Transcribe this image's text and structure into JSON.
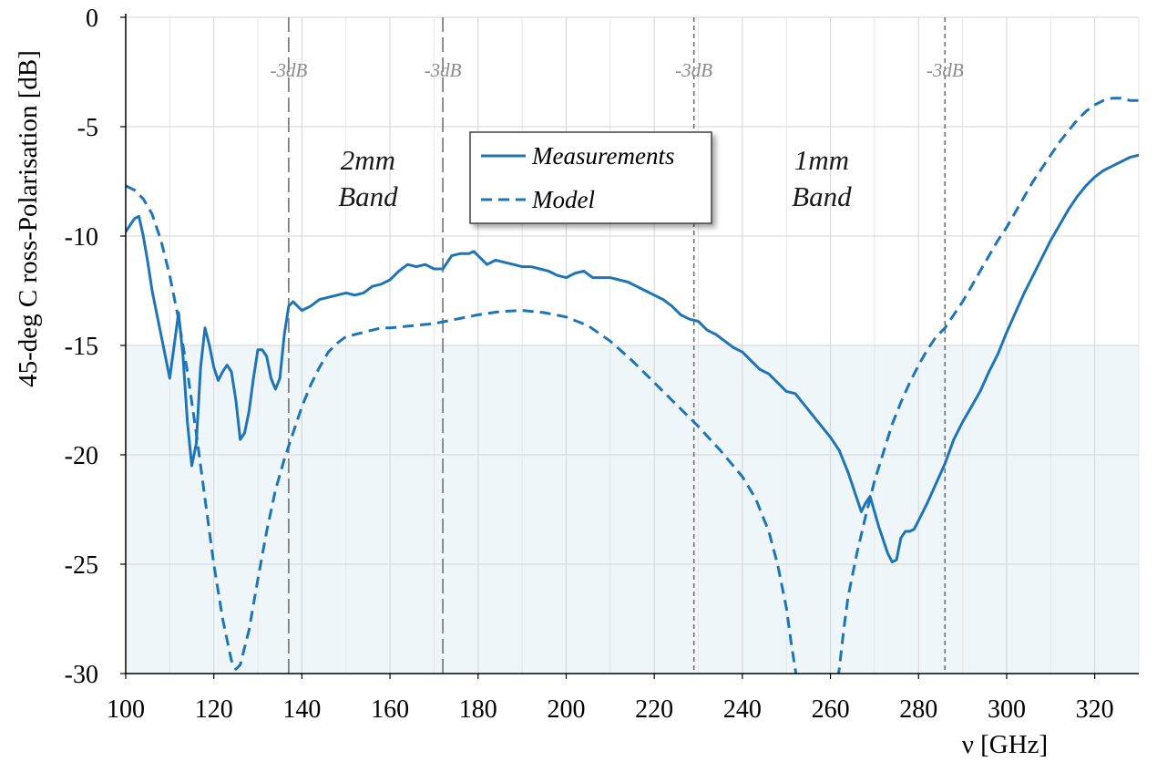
{
  "chart_data": {
    "type": "line",
    "xlabel": "ν [GHz]",
    "ylabel": "45-deg C ross-Polarisation [dB]",
    "xlim": [
      100,
      330
    ],
    "ylim": [
      -30,
      0
    ],
    "x_ticks": [
      100,
      120,
      140,
      160,
      180,
      200,
      220,
      240,
      260,
      280,
      300,
      320
    ],
    "y_ticks": [
      0,
      -5,
      -10,
      -15,
      -20,
      -25,
      -30
    ],
    "grid": true,
    "shaded_region": {
      "y_from": -30,
      "y_to": -15,
      "color": "#eef6fa"
    },
    "legend_position": "top-center",
    "line_color": "#1f74b7",
    "marker_lines": [
      {
        "x": 137,
        "label": "-3dB",
        "style": "long-dash"
      },
      {
        "x": 172,
        "label": "-3dB",
        "style": "long-dash"
      },
      {
        "x": 229,
        "label": "-3dB",
        "style": "short-dash"
      },
      {
        "x": 286,
        "label": "-3dB",
        "style": "short-dash"
      }
    ],
    "band_labels": [
      {
        "lines": [
          "2mm",
          "Band"
        ],
        "x": 155
      },
      {
        "lines": [
          "1mm",
          "Band"
        ],
        "x": 258
      }
    ],
    "series": [
      {
        "name": "Measurements",
        "style": "solid",
        "points": [
          [
            100,
            -9.8
          ],
          [
            101,
            -9.5
          ],
          [
            102,
            -9.2
          ],
          [
            103,
            -9.1
          ],
          [
            104,
            -10.0
          ],
          [
            105,
            -11.2
          ],
          [
            106,
            -12.5
          ],
          [
            107,
            -13.5
          ],
          [
            108,
            -14.5
          ],
          [
            109,
            -15.5
          ],
          [
            110,
            -16.5
          ],
          [
            111,
            -15.0
          ],
          [
            112,
            -13.5
          ],
          [
            113,
            -15.5
          ],
          [
            114,
            -18.5
          ],
          [
            115,
            -20.5
          ],
          [
            116,
            -19.5
          ],
          [
            117,
            -16.0
          ],
          [
            118,
            -14.2
          ],
          [
            119,
            -15.0
          ],
          [
            120,
            -16.0
          ],
          [
            121,
            -16.6
          ],
          [
            122,
            -16.2
          ],
          [
            123,
            -15.9
          ],
          [
            124,
            -16.2
          ],
          [
            125,
            -17.5
          ],
          [
            126,
            -19.3
          ],
          [
            127,
            -19.0
          ],
          [
            128,
            -18.0
          ],
          [
            129,
            -16.5
          ],
          [
            130,
            -15.2
          ],
          [
            131,
            -15.2
          ],
          [
            132,
            -15.5
          ],
          [
            133,
            -16.5
          ],
          [
            134,
            -17.0
          ],
          [
            135,
            -16.5
          ],
          [
            136,
            -14.5
          ],
          [
            137,
            -13.2
          ],
          [
            138,
            -13.0
          ],
          [
            140,
            -13.4
          ],
          [
            142,
            -13.2
          ],
          [
            144,
            -12.9
          ],
          [
            146,
            -12.8
          ],
          [
            148,
            -12.7
          ],
          [
            150,
            -12.6
          ],
          [
            152,
            -12.7
          ],
          [
            154,
            -12.6
          ],
          [
            156,
            -12.3
          ],
          [
            158,
            -12.2
          ],
          [
            160,
            -12.0
          ],
          [
            162,
            -11.6
          ],
          [
            164,
            -11.3
          ],
          [
            166,
            -11.4
          ],
          [
            168,
            -11.3
          ],
          [
            170,
            -11.5
          ],
          [
            172,
            -11.5
          ],
          [
            174,
            -10.9
          ],
          [
            176,
            -10.8
          ],
          [
            178,
            -10.8
          ],
          [
            179,
            -10.7
          ],
          [
            180,
            -10.9
          ],
          [
            182,
            -11.3
          ],
          [
            184,
            -11.1
          ],
          [
            186,
            -11.2
          ],
          [
            188,
            -11.3
          ],
          [
            190,
            -11.4
          ],
          [
            192,
            -11.4
          ],
          [
            194,
            -11.5
          ],
          [
            196,
            -11.6
          ],
          [
            198,
            -11.8
          ],
          [
            200,
            -11.9
          ],
          [
            202,
            -11.7
          ],
          [
            204,
            -11.6
          ],
          [
            206,
            -11.9
          ],
          [
            208,
            -11.9
          ],
          [
            210,
            -11.9
          ],
          [
            212,
            -12.0
          ],
          [
            214,
            -12.1
          ],
          [
            216,
            -12.3
          ],
          [
            218,
            -12.5
          ],
          [
            220,
            -12.7
          ],
          [
            222,
            -12.9
          ],
          [
            224,
            -13.2
          ],
          [
            226,
            -13.6
          ],
          [
            228,
            -13.8
          ],
          [
            230,
            -13.9
          ],
          [
            232,
            -14.3
          ],
          [
            234,
            -14.5
          ],
          [
            236,
            -14.8
          ],
          [
            238,
            -15.1
          ],
          [
            240,
            -15.3
          ],
          [
            242,
            -15.7
          ],
          [
            244,
            -16.1
          ],
          [
            246,
            -16.3
          ],
          [
            248,
            -16.7
          ],
          [
            250,
            -17.1
          ],
          [
            252,
            -17.2
          ],
          [
            254,
            -17.7
          ],
          [
            256,
            -18.2
          ],
          [
            258,
            -18.7
          ],
          [
            260,
            -19.2
          ],
          [
            262,
            -19.8
          ],
          [
            264,
            -20.8
          ],
          [
            266,
            -22.0
          ],
          [
            267,
            -22.6
          ],
          [
            268,
            -22.2
          ],
          [
            269,
            -21.9
          ],
          [
            270,
            -22.6
          ],
          [
            271,
            -23.3
          ],
          [
            272,
            -23.9
          ],
          [
            273,
            -24.5
          ],
          [
            274,
            -24.9
          ],
          [
            275,
            -24.8
          ],
          [
            276,
            -23.8
          ],
          [
            277,
            -23.5
          ],
          [
            278,
            -23.5
          ],
          [
            279,
            -23.4
          ],
          [
            280,
            -23.0
          ],
          [
            282,
            -22.2
          ],
          [
            284,
            -21.3
          ],
          [
            286,
            -20.4
          ],
          [
            288,
            -19.3
          ],
          [
            290,
            -18.5
          ],
          [
            292,
            -17.8
          ],
          [
            294,
            -17.1
          ],
          [
            296,
            -16.2
          ],
          [
            298,
            -15.4
          ],
          [
            300,
            -14.4
          ],
          [
            302,
            -13.5
          ],
          [
            304,
            -12.6
          ],
          [
            306,
            -11.8
          ],
          [
            308,
            -11.0
          ],
          [
            310,
            -10.2
          ],
          [
            312,
            -9.5
          ],
          [
            314,
            -8.8
          ],
          [
            316,
            -8.2
          ],
          [
            318,
            -7.7
          ],
          [
            320,
            -7.3
          ],
          [
            322,
            -7.0
          ],
          [
            324,
            -6.8
          ],
          [
            326,
            -6.6
          ],
          [
            328,
            -6.4
          ],
          [
            330,
            -6.3
          ]
        ]
      },
      {
        "name": "Model",
        "style": "dashed",
        "points": [
          [
            100,
            -7.7
          ],
          [
            102,
            -7.9
          ],
          [
            104,
            -8.3
          ],
          [
            106,
            -9.0
          ],
          [
            108,
            -10.2
          ],
          [
            110,
            -11.8
          ],
          [
            112,
            -13.8
          ],
          [
            114,
            -16.2
          ],
          [
            116,
            -19.0
          ],
          [
            118,
            -22.0
          ],
          [
            120,
            -25.0
          ],
          [
            122,
            -27.5
          ],
          [
            124,
            -29.4
          ],
          [
            125,
            -29.8
          ],
          [
            126,
            -29.6
          ],
          [
            128,
            -28.0
          ],
          [
            130,
            -25.7
          ],
          [
            132,
            -23.5
          ],
          [
            134,
            -21.6
          ],
          [
            136,
            -20.2
          ],
          [
            138,
            -19.0
          ],
          [
            140,
            -17.8
          ],
          [
            142,
            -16.8
          ],
          [
            144,
            -16.0
          ],
          [
            146,
            -15.3
          ],
          [
            148,
            -14.9
          ],
          [
            150,
            -14.6
          ],
          [
            152,
            -14.5
          ],
          [
            154,
            -14.4
          ],
          [
            156,
            -14.3
          ],
          [
            158,
            -14.2
          ],
          [
            160,
            -14.2
          ],
          [
            165,
            -14.1
          ],
          [
            170,
            -14.0
          ],
          [
            175,
            -13.8
          ],
          [
            180,
            -13.6
          ],
          [
            185,
            -13.45
          ],
          [
            190,
            -13.4
          ],
          [
            195,
            -13.5
          ],
          [
            200,
            -13.7
          ],
          [
            205,
            -14.1
          ],
          [
            210,
            -14.8
          ],
          [
            215,
            -15.7
          ],
          [
            220,
            -16.7
          ],
          [
            225,
            -17.7
          ],
          [
            230,
            -18.7
          ],
          [
            235,
            -19.8
          ],
          [
            240,
            -21.0
          ],
          [
            243,
            -22.0
          ],
          [
            246,
            -23.5
          ],
          [
            248,
            -25.0
          ],
          [
            250,
            -27.0
          ],
          [
            251,
            -28.5
          ],
          [
            252,
            -29.8
          ],
          [
            253,
            -31.0
          ]
        ]
      },
      {
        "name": "Model",
        "style": "dashed",
        "segment": "right",
        "points": [
          [
            261,
            -31.0
          ],
          [
            262,
            -29.8
          ],
          [
            263,
            -28.0
          ],
          [
            264,
            -26.5
          ],
          [
            266,
            -24.5
          ],
          [
            268,
            -22.8
          ],
          [
            270,
            -21.2
          ],
          [
            272,
            -19.9
          ],
          [
            274,
            -18.6
          ],
          [
            276,
            -17.6
          ],
          [
            278,
            -16.7
          ],
          [
            280,
            -15.9
          ],
          [
            282,
            -15.2
          ],
          [
            284,
            -14.6
          ],
          [
            286,
            -14.2
          ],
          [
            288,
            -13.6
          ],
          [
            290,
            -13.0
          ],
          [
            292,
            -12.3
          ],
          [
            294,
            -11.6
          ],
          [
            296,
            -10.9
          ],
          [
            298,
            -10.2
          ],
          [
            300,
            -9.6
          ],
          [
            302,
            -8.9
          ],
          [
            304,
            -8.2
          ],
          [
            306,
            -7.5
          ],
          [
            308,
            -6.9
          ],
          [
            310,
            -6.3
          ],
          [
            312,
            -5.7
          ],
          [
            314,
            -5.2
          ],
          [
            316,
            -4.7
          ],
          [
            318,
            -4.3
          ],
          [
            320,
            -4.0
          ],
          [
            322,
            -3.8
          ],
          [
            324,
            -3.7
          ],
          [
            326,
            -3.7
          ],
          [
            328,
            -3.8
          ],
          [
            330,
            -3.8
          ]
        ]
      }
    ]
  }
}
